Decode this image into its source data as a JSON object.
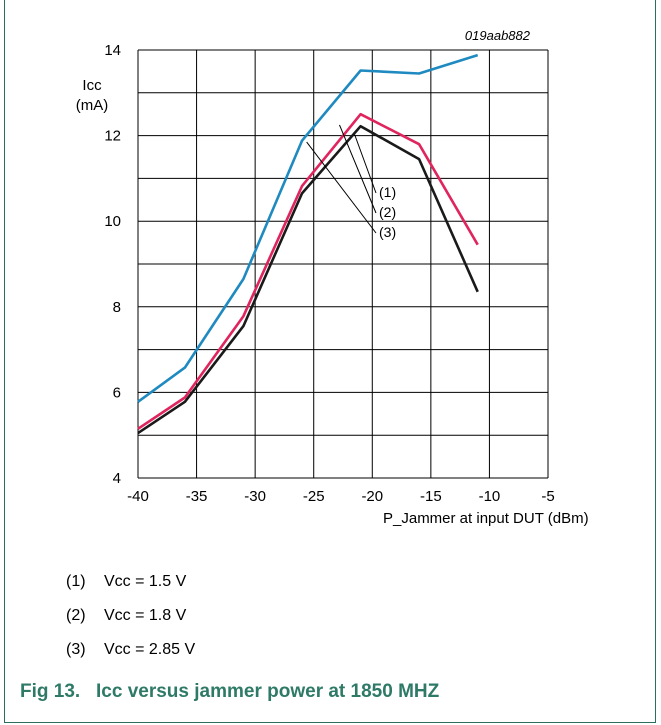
{
  "figure_code": "019aab882",
  "caption": "Fig 13.   Icc versus jammer power at 1850 MHZ",
  "legend": [
    {
      "num": "(1)",
      "text": "Vcc = 1.5 V"
    },
    {
      "num": "(2)",
      "text": "Vcc = 1.8 V"
    },
    {
      "num": "(3)",
      "text": "Vcc = 2.85 V"
    }
  ],
  "colors": {
    "series1": "#1a1a1a",
    "series2": "#e0245e",
    "series3": "#1f8ac0",
    "frame": "#2e6e5c",
    "caption": "#2e7a67"
  },
  "chart_data": {
    "type": "line",
    "xlabel": "P_Jammer at input DUT (dBm)",
    "ylabel_line1": "Icc",
    "ylabel_line2": "(mA)",
    "xlim": [
      -40,
      -5
    ],
    "ylim": [
      4,
      14
    ],
    "x_ticks": [
      -40,
      -35,
      -30,
      -25,
      -20,
      -15,
      -10,
      -5
    ],
    "y_ticks": [
      4,
      6,
      8,
      10,
      12,
      14
    ],
    "grid": true,
    "x": [
      -40,
      -36,
      -31,
      -26,
      -21,
      -16,
      -11
    ],
    "series": [
      {
        "name": "(1)",
        "values": [
          5.05,
          5.78,
          7.55,
          10.65,
          12.22,
          11.45,
          8.35
        ]
      },
      {
        "name": "(2)",
        "values": [
          5.15,
          5.88,
          7.78,
          10.82,
          12.5,
          11.8,
          9.45
        ]
      },
      {
        "name": "(3)",
        "values": [
          5.78,
          6.58,
          8.65,
          11.88,
          13.52,
          13.45,
          13.88
        ]
      }
    ]
  }
}
